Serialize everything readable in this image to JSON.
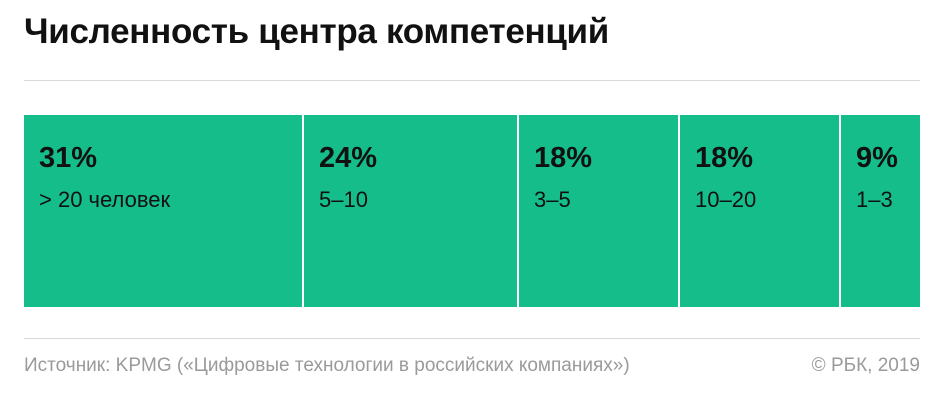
{
  "title": "Численность центра компетенций",
  "footer": {
    "source": "Источник: KPMG («Цифровые технологии в российских компаниях»)",
    "copyright": "© РБК, 2019"
  },
  "colors": {
    "segment": "#15bd8a",
    "divider": "#ffffff",
    "text": "#111111",
    "muted": "#9a9a9a"
  },
  "chart_data": {
    "type": "bar",
    "stacked": true,
    "orientation": "horizontal",
    "categories": [
      "> 20 человек",
      "5–10",
      "3–5",
      "10–20",
      "1–3"
    ],
    "values": [
      31,
      24,
      18,
      18,
      9
    ],
    "value_labels": [
      "31%",
      "24%",
      "18%",
      "18%",
      "9%"
    ],
    "unit": "%",
    "title": "Численность центра компетенций"
  }
}
